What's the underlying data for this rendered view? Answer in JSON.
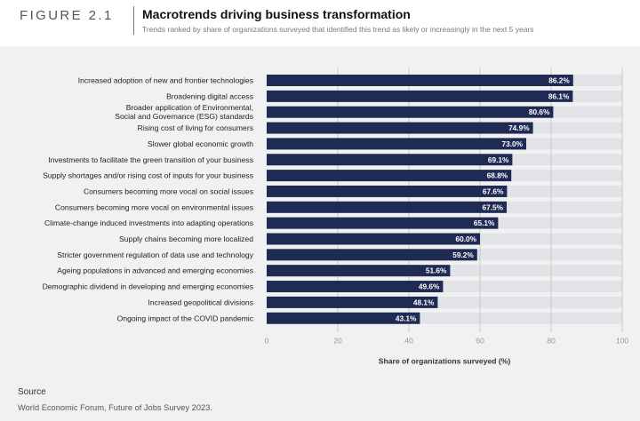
{
  "header": {
    "figure_label": "FIGURE 2.1",
    "title": "Macrotrends driving business transformation",
    "subtitle": "Trends ranked by share of organizations surveyed that identified this trend as likely or increasingly in the next 5 years"
  },
  "source": {
    "title": "Source",
    "text": "World Economic Forum, Future of Jobs Survey 2023."
  },
  "colors": {
    "bar": "#1f2a55",
    "track": "#e2e3e6",
    "gridline": "#c9c9c9"
  },
  "chart_data": {
    "type": "bar",
    "orientation": "horizontal",
    "categories": [
      [
        "Increased adoption of new and frontier technologies"
      ],
      [
        "Broadening digital access"
      ],
      [
        "Broader application of Environmental,",
        "Social and Governance (ESG) standards"
      ],
      [
        "Rising cost of living for consumers"
      ],
      [
        "Slower global economic growth"
      ],
      [
        "Investments to facilitate the green transition of your business"
      ],
      [
        "Supply shortages and/or rising cost of inputs for your business"
      ],
      [
        "Consumers becoming more vocal on social issues"
      ],
      [
        "Consumers becoming more vocal on environmental issues"
      ],
      [
        "Climate-change induced investments into adapting operations"
      ],
      [
        "Supply chains becoming more localized"
      ],
      [
        "Stricter government regulation of data use and technology"
      ],
      [
        "Ageing populations in advanced and emerging economies"
      ],
      [
        "Demographic dividend in developing and emerging economies"
      ],
      [
        "Increased geopolitical divisions"
      ],
      [
        "Ongoing impact of the COVID pandemic"
      ]
    ],
    "values": [
      86.2,
      86.1,
      80.6,
      74.9,
      73.0,
      69.1,
      68.8,
      67.6,
      67.5,
      65.1,
      60.0,
      59.2,
      51.6,
      49.6,
      48.1,
      43.1
    ],
    "value_labels": [
      "86.2%",
      "86.1%",
      "80.6%",
      "74.9%",
      "73.0%",
      "69.1%",
      "68.8%",
      "67.6%",
      "67.5%",
      "65.1%",
      "60.0%",
      "59.2%",
      "51.6%",
      "49.6%",
      "48.1%",
      "43.1%"
    ],
    "xlim": [
      0,
      100
    ],
    "xticks": [
      0,
      20,
      40,
      60,
      80,
      100
    ],
    "xtick_labels": [
      "0",
      "20",
      "40",
      "60",
      "80",
      "100"
    ],
    "xlabel": "Share of organizations surveyed (%)",
    "ylabel": "",
    "grid": true
  }
}
